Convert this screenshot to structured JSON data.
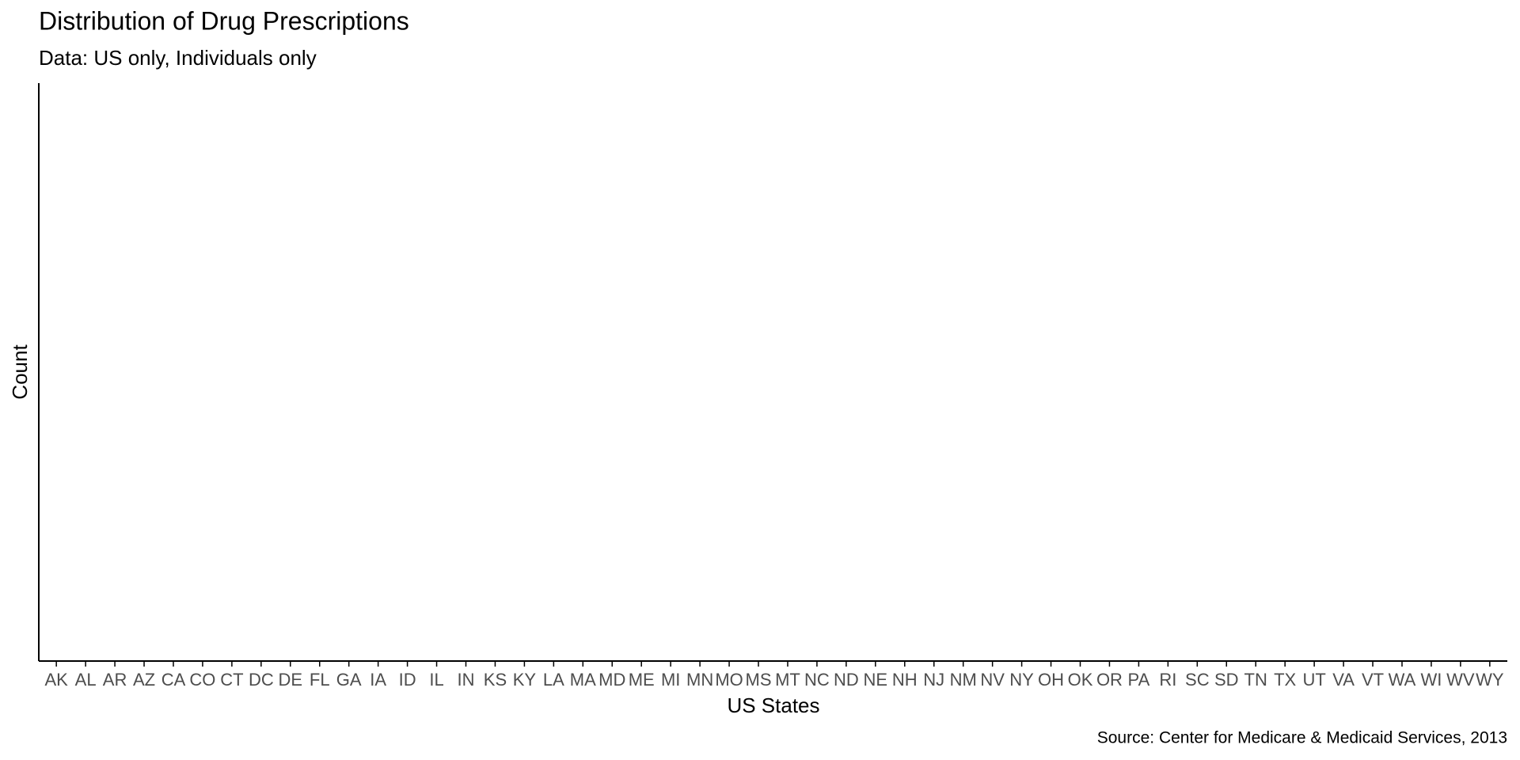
{
  "chart_data": {
    "type": "bar",
    "title": "Distribution of Drug Prescriptions",
    "subtitle": "Data: US only, Individuals only",
    "x_label": "US States",
    "y_label": "Count",
    "caption": "Source: Center for Medicare & Medicaid Services, 2013",
    "categories": [
      "AK",
      "AL",
      "AR",
      "AZ",
      "CA",
      "CO",
      "CT",
      "DC",
      "DE",
      "FL",
      "GA",
      "IA",
      "ID",
      "IL",
      "IN",
      "KS",
      "KY",
      "LA",
      "MA",
      "MD",
      "ME",
      "MI",
      "MN",
      "MO",
      "MS",
      "MT",
      "NC",
      "ND",
      "NE",
      "NH",
      "NJ",
      "NM",
      "NV",
      "NY",
      "OH",
      "OK",
      "OR",
      "PA",
      "RI",
      "SC",
      "SD",
      "TN",
      "TX",
      "UT",
      "VA",
      "VT",
      "WA",
      "WI",
      "WV",
      "WY"
    ]
  }
}
